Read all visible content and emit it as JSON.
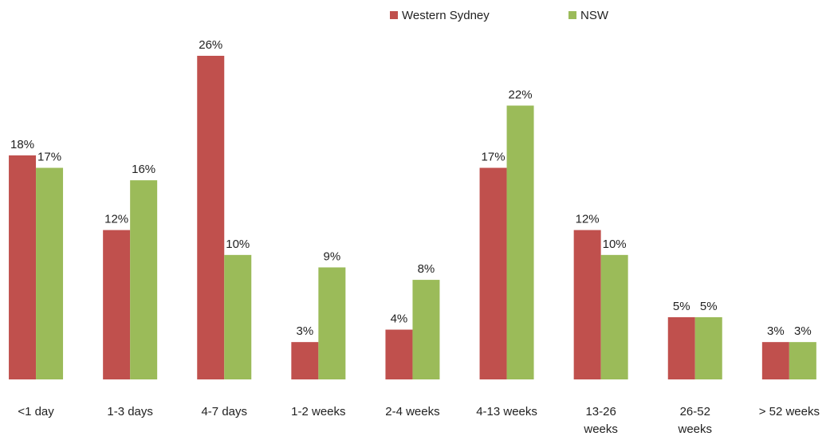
{
  "chart_data": {
    "type": "bar",
    "categories": [
      "<1 day",
      "1-3 days",
      "4-7 days",
      "1-2 weeks",
      "2-4 weeks",
      "4-13 weeks",
      "13-26 weeks",
      "26-52 weeks",
      "> 52 weeks"
    ],
    "series": [
      {
        "name": "Western Sydney",
        "color": "#c0504d",
        "values": [
          18,
          12,
          26,
          3,
          4,
          17,
          12,
          5,
          3
        ],
        "value_labels": [
          "18%",
          "12%",
          "26%",
          "3%",
          "4%",
          "17%",
          "12%",
          "5%",
          "3%"
        ]
      },
      {
        "name": "NSW",
        "color": "#9bbb59",
        "values": [
          17,
          16,
          10,
          9,
          8,
          22,
          10,
          5,
          3
        ],
        "value_labels": [
          "17%",
          "16%",
          "10%",
          "9%",
          "8%",
          "22%",
          "10%",
          "5%",
          "3%"
        ]
      }
    ],
    "legend": "top"
  }
}
